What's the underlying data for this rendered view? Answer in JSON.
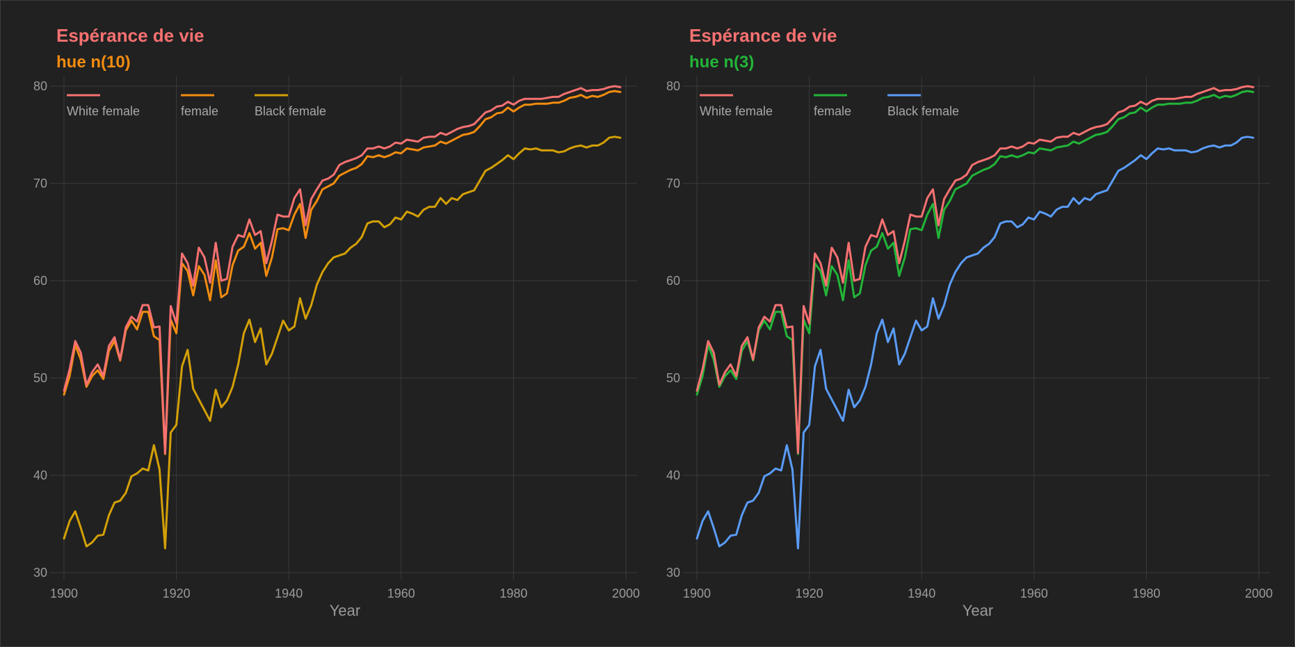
{
  "chart_data": [
    {
      "type": "line",
      "title": "Espérance de vie",
      "subtitle": "hue n(10)",
      "title_color": "#f87171",
      "subtitle_color": "#f28c0f",
      "xlabel": "Year",
      "ylabel": "",
      "xlim": [
        1900,
        2000
      ],
      "ylim": [
        30,
        81
      ],
      "xticks": [
        1900,
        1920,
        1940,
        1960,
        1980,
        2000
      ],
      "yticks": [
        30,
        40,
        50,
        60,
        70,
        80
      ],
      "grid": true,
      "legend_position": "top-left",
      "x_start": 1900,
      "x_end": 1999,
      "series": [
        {
          "name": "White female",
          "color": "#f87171",
          "values": [
            48.7,
            50.9,
            53.8,
            52.6,
            49.3,
            50.6,
            51.4,
            50.2,
            53.3,
            54.2,
            51.9,
            55.2,
            56.3,
            55.8,
            57.5,
            57.5,
            55.2,
            55.3,
            42.3,
            57.4,
            55.6,
            62.8,
            61.8,
            59.5,
            63.4,
            62.4,
            59.8,
            63.9,
            60.0,
            60.2,
            63.5,
            64.7,
            64.5,
            66.3,
            64.7,
            65.1,
            61.8,
            64.1,
            66.8,
            66.6,
            66.6,
            68.5,
            69.4,
            65.7,
            68.4,
            69.4,
            70.3,
            70.5,
            70.9,
            71.9,
            72.2,
            72.4,
            72.6,
            72.9,
            73.6,
            73.6,
            73.8,
            73.6,
            73.8,
            74.2,
            74.1,
            74.5,
            74.4,
            74.3,
            74.7,
            74.8,
            74.8,
            75.2,
            75.0,
            75.3,
            75.6,
            75.8,
            75.9,
            76.1,
            76.7,
            77.3,
            77.5,
            77.9,
            78.0,
            78.4,
            78.1,
            78.5,
            78.7,
            78.7,
            78.7,
            78.7,
            78.8,
            78.9,
            78.9,
            79.2,
            79.4,
            79.6,
            79.8,
            79.5,
            79.6,
            79.6,
            79.7,
            79.9,
            80.0,
            79.9
          ]
        },
        {
          "name": "female",
          "color": "#f28c0f",
          "values": [
            48.3,
            50.2,
            53.4,
            51.9,
            49.1,
            50.2,
            50.8,
            49.9,
            52.8,
            53.8,
            51.8,
            54.9,
            55.9,
            55.0,
            56.8,
            56.8,
            54.3,
            53.9,
            42.2,
            56.0,
            54.6,
            61.8,
            61.0,
            58.5,
            61.5,
            60.6,
            58.0,
            62.1,
            58.3,
            58.7,
            61.6,
            63.1,
            63.5,
            64.9,
            63.3,
            63.9,
            60.5,
            62.4,
            65.3,
            65.4,
            65.2,
            66.8,
            67.9,
            64.4,
            67.3,
            68.2,
            69.4,
            69.7,
            70.0,
            70.8,
            71.1,
            71.4,
            71.6,
            72.0,
            72.8,
            72.7,
            72.9,
            72.7,
            72.9,
            73.2,
            73.1,
            73.6,
            73.5,
            73.4,
            73.7,
            73.8,
            73.9,
            74.3,
            74.1,
            74.4,
            74.7,
            75.0,
            75.1,
            75.3,
            75.9,
            76.6,
            76.8,
            77.2,
            77.3,
            77.8,
            77.4,
            77.8,
            78.1,
            78.1,
            78.2,
            78.2,
            78.2,
            78.3,
            78.3,
            78.5,
            78.8,
            78.9,
            79.1,
            78.8,
            79.0,
            78.9,
            79.1,
            79.4,
            79.5,
            79.4
          ]
        },
        {
          "name": "Black female",
          "color": "#d4a007",
          "values": [
            33.5,
            35.3,
            36.3,
            34.6,
            32.7,
            33.1,
            33.8,
            33.9,
            35.9,
            37.2,
            37.4,
            38.2,
            39.9,
            40.2,
            40.7,
            40.5,
            43.1,
            40.6,
            32.5,
            44.4,
            45.2,
            51.2,
            52.9,
            48.9,
            47.8,
            46.7,
            45.6,
            48.8,
            47.0,
            47.7,
            49.1,
            51.4,
            54.6,
            56.0,
            53.7,
            55.1,
            51.4,
            52.5,
            54.2,
            55.9,
            54.9,
            55.3,
            58.2,
            56.1,
            57.5,
            59.6,
            60.9,
            61.8,
            62.4,
            62.6,
            62.8,
            63.4,
            63.8,
            64.5,
            65.9,
            66.1,
            66.1,
            65.5,
            65.8,
            66.5,
            66.3,
            67.1,
            66.9,
            66.6,
            67.3,
            67.6,
            67.6,
            68.5,
            67.9,
            68.5,
            68.3,
            68.9,
            69.1,
            69.3,
            70.3,
            71.3,
            71.6,
            72.0,
            72.4,
            72.9,
            72.5,
            73.1,
            73.6,
            73.5,
            73.6,
            73.4,
            73.4,
            73.4,
            73.2,
            73.3,
            73.6,
            73.8,
            73.9,
            73.7,
            73.9,
            73.9,
            74.2,
            74.7,
            74.8,
            74.7
          ]
        }
      ]
    },
    {
      "type": "line",
      "title": "Espérance de vie",
      "subtitle": "hue n(3)",
      "title_color": "#f87171",
      "subtitle_color": "#22b539",
      "xlabel": "Year",
      "ylabel": "",
      "xlim": [
        1900,
        2000
      ],
      "ylim": [
        30,
        81
      ],
      "xticks": [
        1900,
        1920,
        1940,
        1960,
        1980,
        2000
      ],
      "yticks": [
        30,
        40,
        50,
        60,
        70,
        80
      ],
      "grid": true,
      "legend_position": "top-left",
      "x_start": 1900,
      "x_end": 1999,
      "series": [
        {
          "name": "White female",
          "color": "#f87171",
          "values": [
            48.7,
            50.9,
            53.8,
            52.6,
            49.3,
            50.6,
            51.4,
            50.2,
            53.3,
            54.2,
            51.9,
            55.2,
            56.3,
            55.8,
            57.5,
            57.5,
            55.2,
            55.3,
            42.3,
            57.4,
            55.6,
            62.8,
            61.8,
            59.5,
            63.4,
            62.4,
            59.8,
            63.9,
            60.0,
            60.2,
            63.5,
            64.7,
            64.5,
            66.3,
            64.7,
            65.1,
            61.8,
            64.1,
            66.8,
            66.6,
            66.6,
            68.5,
            69.4,
            65.7,
            68.4,
            69.4,
            70.3,
            70.5,
            70.9,
            71.9,
            72.2,
            72.4,
            72.6,
            72.9,
            73.6,
            73.6,
            73.8,
            73.6,
            73.8,
            74.2,
            74.1,
            74.5,
            74.4,
            74.3,
            74.7,
            74.8,
            74.8,
            75.2,
            75.0,
            75.3,
            75.6,
            75.8,
            75.9,
            76.1,
            76.7,
            77.3,
            77.5,
            77.9,
            78.0,
            78.4,
            78.1,
            78.5,
            78.7,
            78.7,
            78.7,
            78.7,
            78.8,
            78.9,
            78.9,
            79.2,
            79.4,
            79.6,
            79.8,
            79.5,
            79.6,
            79.6,
            79.7,
            79.9,
            80.0,
            79.9
          ]
        },
        {
          "name": "female",
          "color": "#22b539",
          "values": [
            48.3,
            50.2,
            53.4,
            51.9,
            49.1,
            50.2,
            50.8,
            49.9,
            52.8,
            53.8,
            51.8,
            54.9,
            55.9,
            55.0,
            56.8,
            56.8,
            54.3,
            53.9,
            42.2,
            56.0,
            54.6,
            61.8,
            61.0,
            58.5,
            61.5,
            60.6,
            58.0,
            62.1,
            58.3,
            58.7,
            61.6,
            63.1,
            63.5,
            64.9,
            63.3,
            63.9,
            60.5,
            62.4,
            65.3,
            65.4,
            65.2,
            66.8,
            67.9,
            64.4,
            67.3,
            68.2,
            69.4,
            69.7,
            70.0,
            70.8,
            71.1,
            71.4,
            71.6,
            72.0,
            72.8,
            72.7,
            72.9,
            72.7,
            72.9,
            73.2,
            73.1,
            73.6,
            73.5,
            73.4,
            73.7,
            73.8,
            73.9,
            74.3,
            74.1,
            74.4,
            74.7,
            75.0,
            75.1,
            75.3,
            75.9,
            76.6,
            76.8,
            77.2,
            77.3,
            77.8,
            77.4,
            77.8,
            78.1,
            78.1,
            78.2,
            78.2,
            78.2,
            78.3,
            78.3,
            78.5,
            78.8,
            78.9,
            79.1,
            78.8,
            79.0,
            78.9,
            79.1,
            79.4,
            79.5,
            79.4
          ]
        },
        {
          "name": "Black female",
          "color": "#5a9cf8",
          "values": [
            33.5,
            35.3,
            36.3,
            34.6,
            32.7,
            33.1,
            33.8,
            33.9,
            35.9,
            37.2,
            37.4,
            38.2,
            39.9,
            40.2,
            40.7,
            40.5,
            43.1,
            40.6,
            32.5,
            44.4,
            45.2,
            51.2,
            52.9,
            48.9,
            47.8,
            46.7,
            45.6,
            48.8,
            47.0,
            47.7,
            49.1,
            51.4,
            54.6,
            56.0,
            53.7,
            55.1,
            51.4,
            52.5,
            54.2,
            55.9,
            54.9,
            55.3,
            58.2,
            56.1,
            57.5,
            59.6,
            60.9,
            61.8,
            62.4,
            62.6,
            62.8,
            63.4,
            63.8,
            64.5,
            65.9,
            66.1,
            66.1,
            65.5,
            65.8,
            66.5,
            66.3,
            67.1,
            66.9,
            66.6,
            67.3,
            67.6,
            67.6,
            68.5,
            67.9,
            68.5,
            68.3,
            68.9,
            69.1,
            69.3,
            70.3,
            71.3,
            71.6,
            72.0,
            72.4,
            72.9,
            72.5,
            73.1,
            73.6,
            73.5,
            73.6,
            73.4,
            73.4,
            73.4,
            73.2,
            73.3,
            73.6,
            73.8,
            73.9,
            73.7,
            73.9,
            73.9,
            74.2,
            74.7,
            74.8,
            74.7
          ]
        }
      ]
    }
  ]
}
